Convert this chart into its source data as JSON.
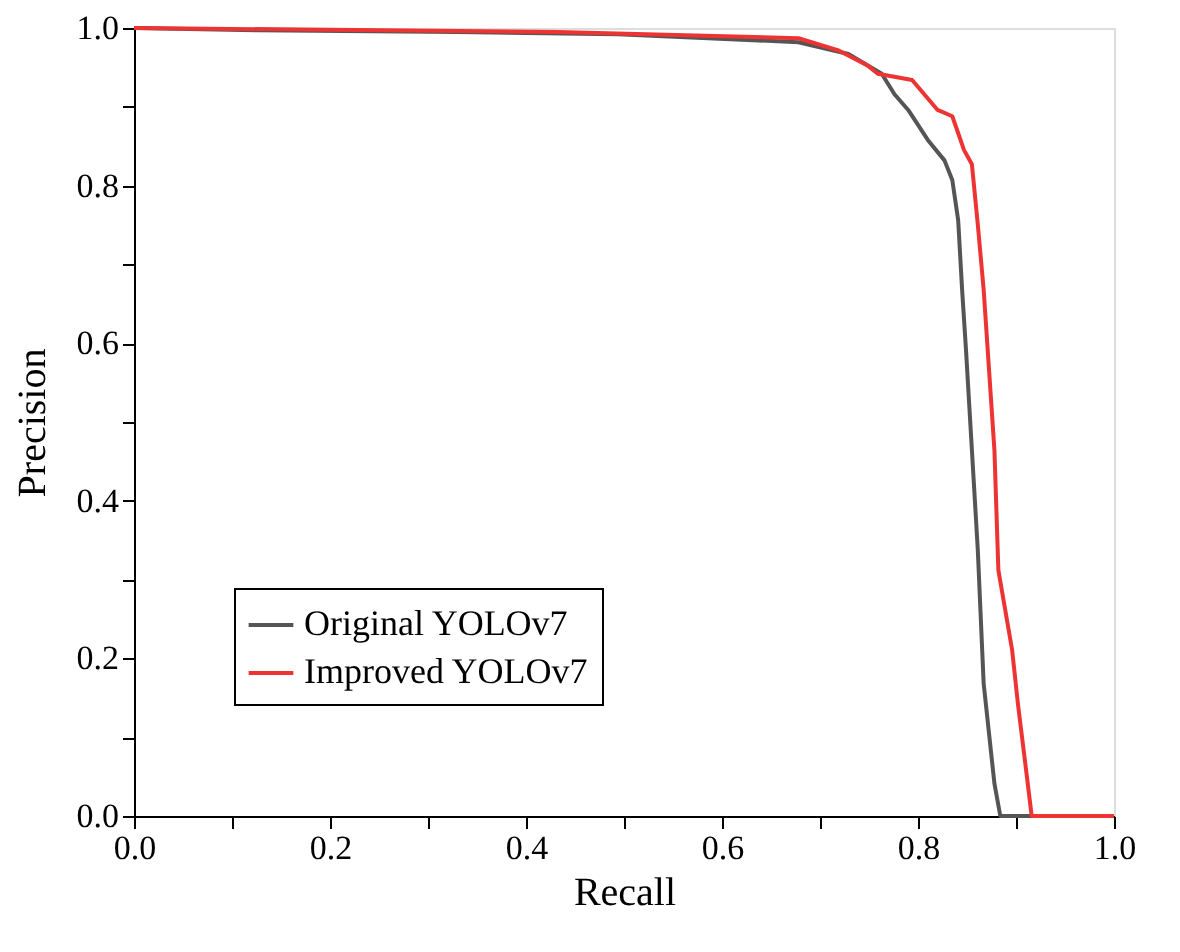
{
  "chart_data": {
    "type": "line",
    "xlabel": "Recall",
    "ylabel": "Precision",
    "xlim": [
      0,
      1
    ],
    "ylim": [
      0,
      1
    ],
    "xticks": [
      {
        "value": 0,
        "label": "0.0"
      },
      {
        "value": 0.1,
        "label": null
      },
      {
        "value": 0.2,
        "label": "0.2"
      },
      {
        "value": 0.3,
        "label": null
      },
      {
        "value": 0.4,
        "label": "0.4"
      },
      {
        "value": 0.5,
        "label": null
      },
      {
        "value": 0.6,
        "label": "0.6"
      },
      {
        "value": 0.7,
        "label": null
      },
      {
        "value": 0.8,
        "label": "0.8"
      },
      {
        "value": 0.9,
        "label": null
      },
      {
        "value": 1,
        "label": "1.0"
      }
    ],
    "yticks": [
      {
        "value": 0,
        "label": "0.0"
      },
      {
        "value": 0.1,
        "label": null
      },
      {
        "value": 0.2,
        "label": "0.2"
      },
      {
        "value": 0.3,
        "label": null
      },
      {
        "value": 0.4,
        "label": "0.4"
      },
      {
        "value": 0.5,
        "label": null
      },
      {
        "value": 0.6,
        "label": "0.6"
      },
      {
        "value": 0.7,
        "label": null
      },
      {
        "value": 0.8,
        "label": "0.8"
      },
      {
        "value": 0.9,
        "label": null
      },
      {
        "value": 1,
        "label": "1.0"
      }
    ],
    "grid": false,
    "legend": "bottom left",
    "line_style": "solid",
    "marker": "none",
    "series": [
      {
        "name": "Original YOLOv7",
        "color": "#555555",
        "x": [
          0,
          0.127,
          0.331,
          0.494,
          0.678,
          0.729,
          0.763,
          0.776,
          0.79,
          0.81,
          0.827,
          0.835,
          0.841,
          0.845,
          0.849,
          0.861,
          0.867,
          0.878,
          0.884,
          1.0
        ],
        "values": [
          1.0,
          0.997,
          0.995,
          0.992,
          0.982,
          0.967,
          0.942,
          0.916,
          0.896,
          0.858,
          0.832,
          0.807,
          0.756,
          0.668,
          0.591,
          0.338,
          0.168,
          0.041,
          0.0,
          0.0
        ]
      },
      {
        "name": "Improved YOLOv7",
        "color": "#ee3333",
        "x": [
          0,
          0.433,
          0.678,
          0.718,
          0.749,
          0.759,
          0.794,
          0.82,
          0.835,
          0.847,
          0.855,
          0.861,
          0.867,
          0.878,
          0.882,
          0.896,
          0.902,
          0.912,
          0.916,
          1.0
        ],
        "values": [
          1.0,
          0.995,
          0.987,
          0.972,
          0.952,
          0.942,
          0.934,
          0.896,
          0.888,
          0.845,
          0.827,
          0.751,
          0.668,
          0.464,
          0.312,
          0.211,
          0.142,
          0.041,
          0.0,
          0.0
        ]
      }
    ]
  }
}
